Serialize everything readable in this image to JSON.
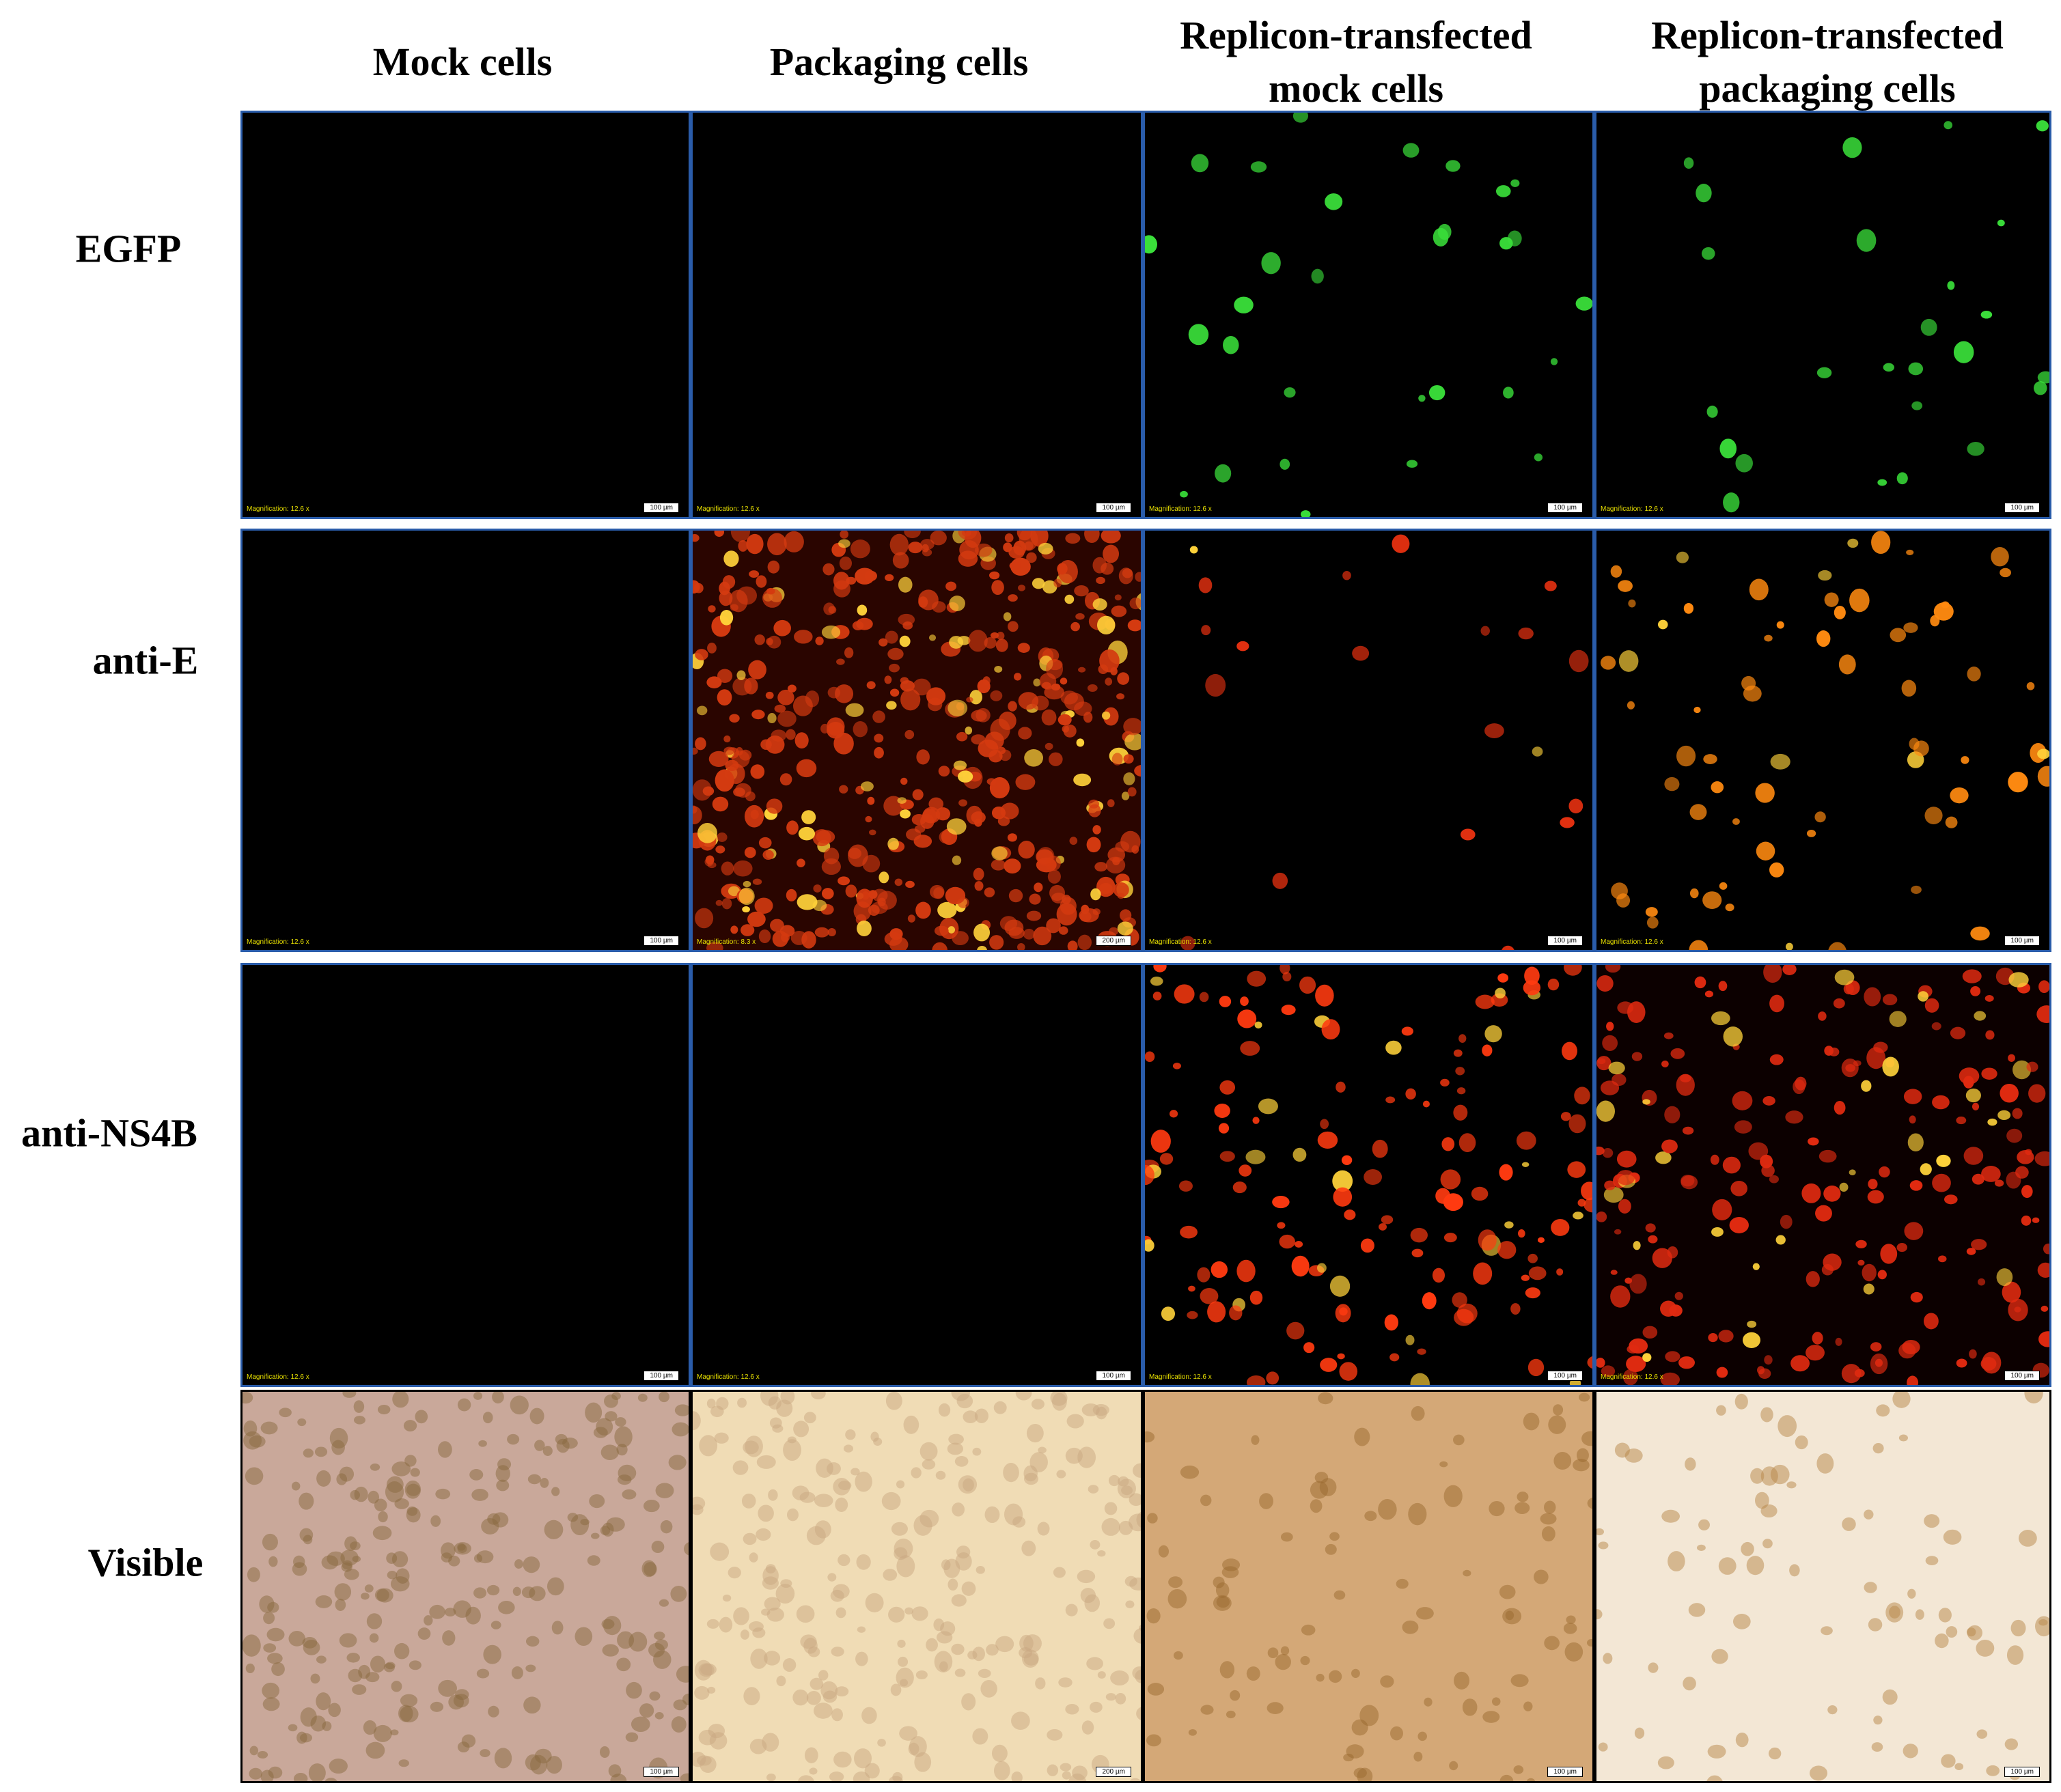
{
  "header": {
    "columns": [
      "Mock cells",
      "Packaging cells",
      "Replicon-transfected mock cells",
      "Replicon-transfected packaging cells"
    ]
  },
  "rows": [
    {
      "label": "EGFP",
      "panels": [
        {
          "magnification": "Magnification: 12.6 x",
          "scale_bar": "100 µm"
        },
        {
          "magnification": "Magnification: 12.6 x",
          "scale_bar": "100 µm"
        },
        {
          "magnification": "Magnification: 12.6 x",
          "scale_bar": "100 µm"
        },
        {
          "magnification": "Magnification: 12.6 x",
          "scale_bar": "100 µm"
        }
      ]
    },
    {
      "label": "anti-E",
      "panels": [
        {
          "magnification": "Magnification: 12.6 x",
          "scale_bar": "100 µm"
        },
        {
          "magnification": "Magnification: 8.3 x",
          "scale_bar": "200 µm"
        },
        {
          "magnification": "Magnification: 12.6 x",
          "scale_bar": "100 µm"
        },
        {
          "magnification": "Magnification: 12.6 x",
          "scale_bar": "100 µm"
        }
      ]
    },
    {
      "label": "anti-NS4B",
      "panels": [
        {
          "magnification": "Magnification: 12.6 x",
          "scale_bar": "100 µm"
        },
        {
          "magnification": "Magnification: 12.6 x",
          "scale_bar": "100 µm"
        },
        {
          "magnification": "Magnification: 12.6 x",
          "scale_bar": "100 µm"
        },
        {
          "magnification": "Magnification: 12.6 x",
          "scale_bar": "100 µm"
        }
      ]
    },
    {
      "label": "Visible",
      "panels": [
        {
          "scale_bar": "100 µm"
        },
        {
          "scale_bar": "200 µm"
        },
        {
          "scale_bar": "100 µm"
        },
        {
          "scale_bar": "100 µm"
        }
      ]
    }
  ]
}
